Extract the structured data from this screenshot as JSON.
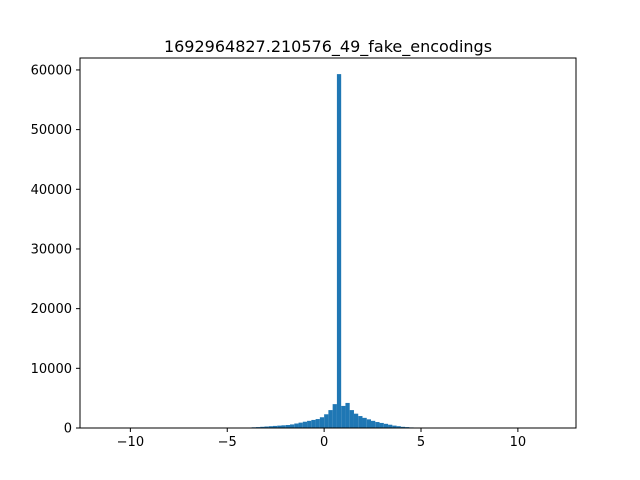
{
  "chart_data": {
    "type": "bar",
    "title": "1692964827.210576_49_fake_encodings",
    "xlabel": "",
    "ylabel": "",
    "xlim": [
      -12.6,
      13.0
    ],
    "ylim": [
      0,
      62000
    ],
    "grid": false,
    "bar_color": "#1f77b4",
    "xticks": [
      {
        "value": -10,
        "label": "−10"
      },
      {
        "value": -5,
        "label": "−5"
      },
      {
        "value": 0,
        "label": "0"
      },
      {
        "value": 5,
        "label": "5"
      },
      {
        "value": 10,
        "label": "10"
      }
    ],
    "yticks": [
      {
        "value": 0,
        "label": "0"
      },
      {
        "value": 10000,
        "label": "10000"
      },
      {
        "value": 20000,
        "label": "20000"
      },
      {
        "value": 30000,
        "label": "30000"
      },
      {
        "value": 40000,
        "label": "40000"
      },
      {
        "value": 50000,
        "label": "50000"
      },
      {
        "value": 60000,
        "label": "60000"
      }
    ],
    "bins": {
      "edges_start": -11.0,
      "width": 0.22,
      "counts": [
        5,
        5,
        5,
        5,
        5,
        5,
        5,
        5,
        5,
        5,
        5,
        5,
        5,
        5,
        5,
        5,
        5,
        5,
        5,
        5,
        5,
        5,
        5,
        5,
        5,
        5,
        5,
        5,
        5,
        10,
        20,
        40,
        80,
        120,
        150,
        200,
        250,
        300,
        350,
        400,
        450,
        500,
        600,
        750,
        900,
        1050,
        1200,
        1350,
        1500,
        1800,
        2300,
        3000,
        4000,
        59300,
        3700,
        4200,
        3000,
        2400,
        2000,
        1700,
        1450,
        1200,
        1000,
        850,
        700,
        550,
        400,
        300,
        200,
        150,
        100,
        50,
        30,
        20,
        10,
        5,
        5,
        5,
        5,
        5,
        5,
        5,
        5,
        5,
        5,
        5,
        5,
        5,
        5,
        5,
        5,
        5,
        5,
        5,
        5,
        5,
        5,
        5,
        5,
        5,
        5,
        5,
        5,
        5,
        5,
        5,
        5,
        5
      ]
    }
  }
}
